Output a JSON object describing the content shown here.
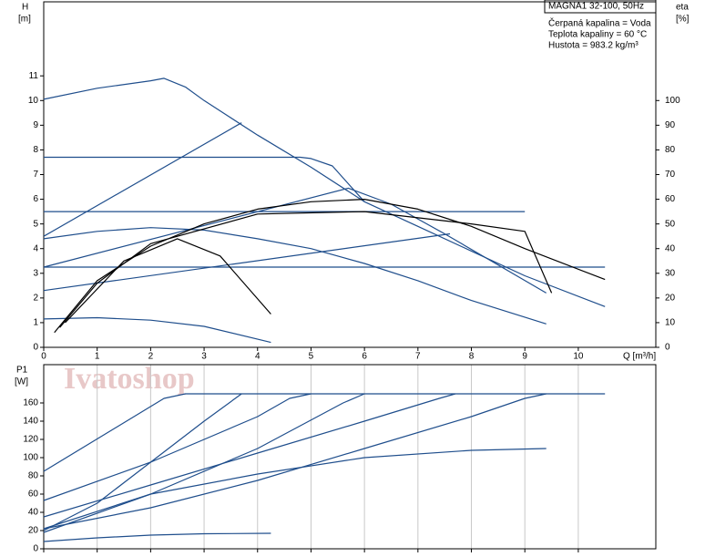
{
  "watermark": "Ivatoshop",
  "chart_data": [
    {
      "type": "line",
      "title": "MAGNA1 32-100, 50Hz",
      "annotations": [
        "Čerpaná kapalina = Voda",
        "Teplota kapaliny = 60 °C",
        "Hustota = 983.2 kg/m³"
      ],
      "x_label": "Q [m³/h]",
      "y_label": "H",
      "y_unit": "[m]",
      "y2_label": "eta",
      "y2_unit": "[%]",
      "xlim": [
        0,
        11.45
      ],
      "xticks": [
        0,
        1,
        2,
        3,
        4,
        5,
        6,
        7,
        8,
        9,
        10
      ],
      "ylim": [
        0,
        14
      ],
      "yticks": [
        0,
        1,
        2,
        3,
        4,
        5,
        6,
        7,
        8,
        9,
        10,
        11
      ],
      "y2lim": [
        0,
        140
      ],
      "y2ticks": [
        0,
        10,
        20,
        30,
        40,
        50,
        60,
        70,
        80,
        90,
        100
      ],
      "series": [
        {
          "color": "#1f4e8c",
          "x": [
            0,
            1,
            2,
            2.25,
            2.65,
            3,
            4,
            5,
            6,
            7,
            8,
            9,
            10.5
          ],
          "values": [
            10.05,
            10.5,
            10.8,
            10.9,
            10.55,
            10.0,
            8.6,
            7.3,
            5.9,
            4.9,
            3.9,
            2.9,
            1.65
          ]
        },
        {
          "color": "#1f4e8c",
          "x": [
            0,
            4.8,
            5.0,
            5.4,
            6
          ],
          "values": [
            7.7,
            7.7,
            7.65,
            7.35,
            5.9
          ]
        },
        {
          "color": "#1f4e8c",
          "x": [
            0,
            9
          ],
          "values": [
            5.5,
            5.5
          ]
        },
        {
          "color": "#1f4e8c",
          "x": [
            0,
            10.5
          ],
          "values": [
            3.25,
            3.25
          ]
        },
        {
          "color": "#1f4e8c",
          "x": [
            0,
            3.7
          ],
          "values": [
            4.5,
            9.1
          ]
        },
        {
          "color": "#1f4e8c",
          "x": [
            0,
            5.7,
            6.5,
            7.5,
            9.4
          ],
          "values": [
            3.25,
            6.45,
            5.8,
            4.6,
            2.2
          ]
        },
        {
          "color": "#1f4e8c",
          "x": [
            0,
            7.6
          ],
          "values": [
            2.3,
            4.6
          ]
        },
        {
          "color": "#1f4e8c",
          "x": [
            0,
            1,
            2,
            3,
            4,
            5,
            6,
            7,
            8,
            9.4
          ],
          "values": [
            4.4,
            4.7,
            4.85,
            4.75,
            4.4,
            4.0,
            3.4,
            2.7,
            1.9,
            0.95
          ]
        },
        {
          "color": "#1f4e8c",
          "x": [
            0,
            1,
            2,
            3,
            4.25
          ],
          "values": [
            1.15,
            1.2,
            1.1,
            0.85,
            0.2
          ]
        },
        {
          "color": "#000000",
          "axis": "y2",
          "x": [
            0.2,
            1,
            2,
            3,
            4,
            5,
            6,
            7,
            8,
            9,
            10.5
          ],
          "values": [
            6,
            27,
            41,
            50,
            56,
            59,
            60,
            56,
            49,
            40,
            27.5
          ]
        },
        {
          "color": "#000000",
          "axis": "y2",
          "x": [
            0.3,
            1,
            2,
            4,
            6,
            8,
            9,
            9.5
          ],
          "values": [
            8,
            26,
            42,
            54,
            55,
            50,
            47,
            22
          ]
        },
        {
          "color": "#000000",
          "axis": "y2",
          "x": [
            0.4,
            1.5,
            2.5,
            3.3,
            4.25
          ],
          "values": [
            10,
            35,
            44,
            37,
            13.5
          ]
        }
      ]
    },
    {
      "type": "line",
      "y_label": "P1",
      "y_unit": "[W]",
      "xlim": [
        0,
        11.45
      ],
      "xticks": [
        0,
        1,
        2,
        3,
        4,
        5,
        6,
        7,
        8,
        9,
        10
      ],
      "x_tick_labels": false,
      "grid": true,
      "ylim": [
        0,
        202
      ],
      "yticks": [
        0,
        20,
        40,
        60,
        80,
        100,
        120,
        140,
        160
      ],
      "series": [
        {
          "color": "#1f4e8c",
          "x": [
            0,
            2.25,
            2.65,
            10.5
          ],
          "values": [
            85,
            165,
            170,
            170
          ]
        },
        {
          "color": "#1f4e8c",
          "x": [
            0,
            1,
            2,
            3,
            3.7
          ],
          "values": [
            20,
            50,
            95,
            140,
            170
          ]
        },
        {
          "color": "#1f4e8c",
          "x": [
            0,
            2,
            4,
            4.6,
            5
          ],
          "values": [
            53,
            95,
            145,
            165,
            170
          ]
        },
        {
          "color": "#1f4e8c",
          "x": [
            0,
            2,
            4,
            5.6,
            6
          ],
          "values": [
            22,
            60,
            110,
            160,
            170
          ]
        },
        {
          "color": "#1f4e8c",
          "x": [
            0,
            2,
            4,
            6,
            7.4,
            7.7
          ],
          "values": [
            35,
            70,
            105,
            140,
            165,
            170
          ]
        },
        {
          "color": "#1f4e8c",
          "x": [
            0,
            2,
            4,
            6,
            8,
            9,
            9.4
          ],
          "values": [
            22,
            45,
            75,
            110,
            145,
            165,
            170
          ]
        },
        {
          "color": "#1f4e8c",
          "x": [
            0,
            2,
            4,
            6,
            8,
            9.4
          ],
          "values": [
            18,
            60,
            82,
            100,
            108,
            110
          ]
        },
        {
          "color": "#1f4e8c",
          "x": [
            0,
            1,
            2,
            3,
            4.25
          ],
          "values": [
            8,
            12,
            15,
            16.5,
            17
          ]
        }
      ]
    }
  ]
}
